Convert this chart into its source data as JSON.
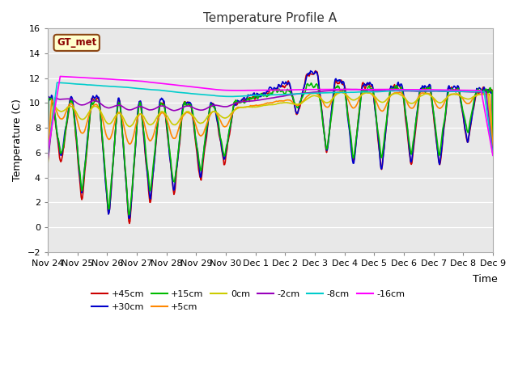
{
  "title": "Temperature Profile A",
  "xlabel": "Time",
  "ylabel": "Temperature (C)",
  "ylim": [
    -2,
    16
  ],
  "yticks": [
    -2,
    0,
    2,
    4,
    6,
    8,
    10,
    12,
    14,
    16
  ],
  "fig_bg": "#ffffff",
  "plot_bg": "#e8e8e8",
  "annotation_text": "GT_met",
  "annotation_bg": "#ffffcc",
  "annotation_border": "#8B4513",
  "series": [
    {
      "label": "+45cm",
      "color": "#cc0000",
      "lw": 1.2
    },
    {
      "label": "+30cm",
      "color": "#0000cc",
      "lw": 1.2
    },
    {
      "label": "+15cm",
      "color": "#00bb00",
      "lw": 1.2
    },
    {
      "label": "+5cm",
      "color": "#ff8800",
      "lw": 1.2
    },
    {
      "label": "0cm",
      "color": "#cccc00",
      "lw": 1.2
    },
    {
      "label": "-2cm",
      "color": "#9900bb",
      "lw": 1.2
    },
    {
      "label": "-8cm",
      "color": "#00cccc",
      "lw": 1.2
    },
    {
      "label": "-16cm",
      "color": "#ff00ff",
      "lw": 1.2
    }
  ],
  "xtick_labels": [
    "Nov 24",
    "Nov 25",
    "Nov 26",
    "Nov 27",
    "Nov 28",
    "Nov 29",
    "Nov 30",
    "Dec 1",
    "Dec 2",
    "Dec 3",
    "Dec 4",
    "Dec 5",
    "Dec 6",
    "Dec 7",
    "Dec 8",
    "Dec 9"
  ]
}
